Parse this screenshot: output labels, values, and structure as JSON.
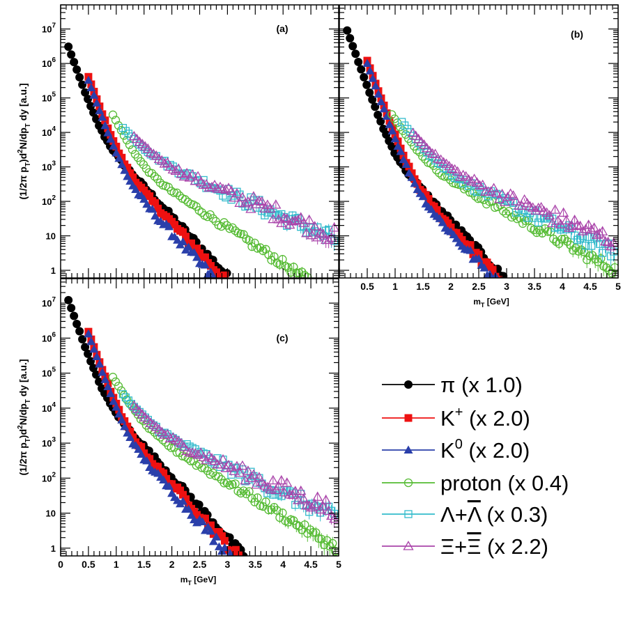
{
  "chart_data": {
    "type": "scatter",
    "y_scale": "log",
    "xlim": [
      0,
      5
    ],
    "ylim": [
      0.6,
      50000000
    ],
    "x_ticks": [
      "0",
      "0.5",
      "1",
      "1.5",
      "2",
      "2.5",
      "3",
      "3.5",
      "4",
      "4.5",
      "5"
    ],
    "y_ticks": [
      {
        "base": "1",
        "exp": ""
      },
      {
        "base": "10",
        "exp": ""
      },
      {
        "base": "10",
        "exp": "2"
      },
      {
        "base": "10",
        "exp": "3"
      },
      {
        "base": "10",
        "exp": "4"
      },
      {
        "base": "10",
        "exp": "5"
      },
      {
        "base": "10",
        "exp": "6"
      },
      {
        "base": "10",
        "exp": "7"
      }
    ],
    "ylabel": "(1/2π p_T)d²N/dp_T dy [a.u.]",
    "xlabel": "m_T [GeV]",
    "panels": [
      {
        "label": "(a)",
        "series": [
          {
            "name": "pi",
            "x_start": 0.14,
            "x_end": 4.95,
            "a": 3000000,
            "b": 10.5,
            "f": 4.0,
            "c": 0.02,
            "scatter": 0.1
          },
          {
            "name": "kplus",
            "x_start": 0.5,
            "x_end": 4.95,
            "a": 400000,
            "b": 10.2,
            "f": 4.0,
            "c": 0.024,
            "scatter": 0.14
          },
          {
            "name": "k0",
            "x_start": 0.5,
            "x_end": 4.95,
            "a": 320000,
            "b": 10.2,
            "f": 4.0,
            "c": 0.015,
            "scatter": 0.18
          },
          {
            "name": "proton",
            "x_start": 0.94,
            "x_end": 4.95,
            "a": 30000,
            "b": 7.5,
            "f": 2.4,
            "c": 0.08,
            "scatter": 0.12
          },
          {
            "name": "lambda",
            "x_start": 1.12,
            "x_end": 4.95,
            "a": 10000,
            "b": 4.8,
            "f": 1.6,
            "c": 0.35,
            "scatter": 0.22
          },
          {
            "name": "xi",
            "x_start": 1.32,
            "x_end": 4.95,
            "a": 5500,
            "b": 4.8,
            "f": 1.5,
            "c": 0.4,
            "scatter": 0.25
          }
        ]
      },
      {
        "label": "(b)",
        "series": [
          {
            "name": "pi",
            "x_start": 0.14,
            "x_end": 4.95,
            "a": 9000000,
            "b": 10.5,
            "f": 4.0,
            "c": 0.005,
            "scatter": 0.1
          },
          {
            "name": "kplus",
            "x_start": 0.5,
            "x_end": 4.95,
            "a": 1200000,
            "b": 10.2,
            "f": 4.0,
            "c": 0.006,
            "scatter": 0.14
          },
          {
            "name": "k0",
            "x_start": 0.5,
            "x_end": 4.95,
            "a": 1000000,
            "b": 10.2,
            "f": 4.0,
            "c": 0.005,
            "scatter": 0.16
          },
          {
            "name": "proton",
            "x_start": 0.94,
            "x_end": 4.95,
            "a": 30000,
            "b": 6.0,
            "f": 2.0,
            "c": 0.1,
            "scatter": 0.14
          },
          {
            "name": "lambda",
            "x_start": 1.12,
            "x_end": 4.95,
            "a": 18000,
            "b": 5.2,
            "f": 1.7,
            "c": 0.12,
            "scatter": 0.2
          },
          {
            "name": "xi",
            "x_start": 1.32,
            "x_end": 4.95,
            "a": 8000,
            "b": 4.6,
            "f": 1.5,
            "c": 0.2,
            "scatter": 0.25
          }
        ]
      },
      {
        "label": "(c)",
        "series": [
          {
            "name": "pi",
            "x_start": 0.14,
            "x_end": 4.95,
            "a": 12000000,
            "b": 10.5,
            "f": 4.0,
            "c": 0.015,
            "scatter": 0.1
          },
          {
            "name": "kplus",
            "x_start": 0.5,
            "x_end": 4.95,
            "a": 1500000,
            "b": 10.2,
            "f": 4.0,
            "c": 0.018,
            "scatter": 0.14
          },
          {
            "name": "k0",
            "x_start": 0.5,
            "x_end": 4.95,
            "a": 1300000,
            "b": 10.2,
            "f": 4.0,
            "c": 0.013,
            "scatter": 0.16
          },
          {
            "name": "proton",
            "x_start": 0.94,
            "x_end": 4.95,
            "a": 70000,
            "b": 6.5,
            "f": 2.2,
            "c": 0.1,
            "scatter": 0.12
          },
          {
            "name": "lambda",
            "x_start": 1.12,
            "x_end": 4.95,
            "a": 20000,
            "b": 5.0,
            "f": 1.7,
            "c": 0.25,
            "scatter": 0.22
          },
          {
            "name": "xi",
            "x_start": 1.32,
            "x_end": 4.95,
            "a": 9000,
            "b": 4.8,
            "f": 1.5,
            "c": 0.3,
            "scatter": 0.25
          }
        ]
      }
    ],
    "legend": [
      {
        "id": "pi",
        "symbol": "π",
        "sup": "",
        "overbar": "",
        "scale": "(x 1.0)",
        "color": "#000000",
        "marker": "circle-filled"
      },
      {
        "id": "kplus",
        "symbol": "K",
        "sup": "+",
        "overbar": "",
        "scale": "(x 2.0)",
        "color": "#ee1111",
        "marker": "square-filled"
      },
      {
        "id": "k0",
        "symbol": "K",
        "sup": "0",
        "overbar": "",
        "scale": "(x 2.0)",
        "color": "#2a3faa",
        "marker": "triangle-filled"
      },
      {
        "id": "proton",
        "symbol": "proton",
        "sup": "",
        "overbar": "",
        "scale": "(x 0.4)",
        "color": "#55bb33",
        "marker": "circle-open"
      },
      {
        "id": "lambda",
        "symbol": "Λ+",
        "sup": "",
        "overbar": "Λ",
        "scale": "(x 0.3)",
        "color": "#33bbcc",
        "marker": "square-open"
      },
      {
        "id": "xi",
        "symbol": "Ξ+",
        "sup": "",
        "overbar": "Ξ",
        "scale": "(x 2.2)",
        "color": "#aa44aa",
        "marker": "triangle-open"
      }
    ]
  }
}
